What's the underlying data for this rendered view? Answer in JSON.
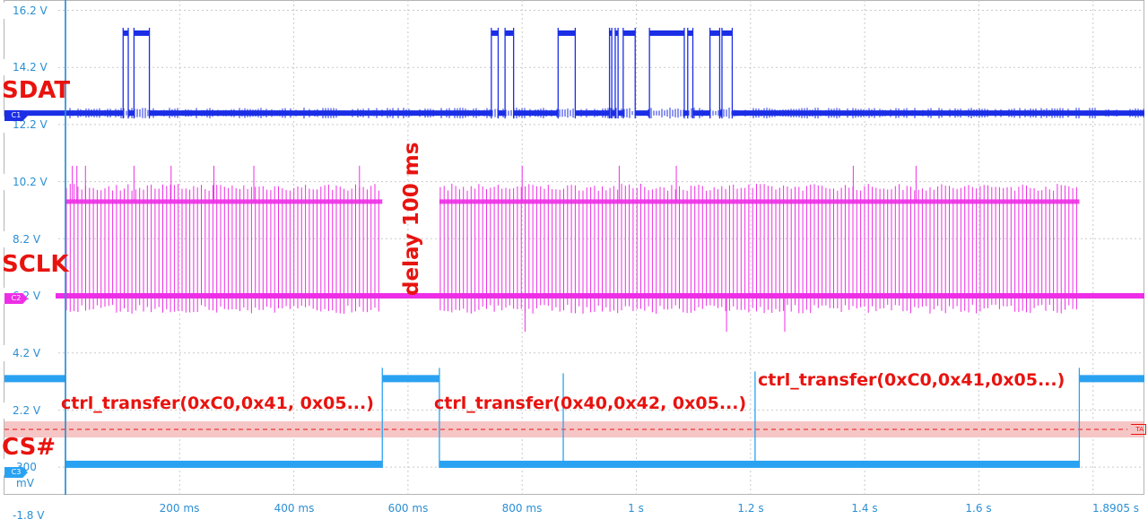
{
  "chart_data": {
    "type": "line",
    "title": "",
    "xlabel": "",
    "ylabel": "",
    "x_unit": "s",
    "xlim": [
      0,
      1.8905
    ],
    "ylim": [
      -1.8,
      16.2
    ],
    "y_ticks": [
      "16.2 V",
      "14.2 V",
      "12.2 V",
      "10.2 V",
      "8.2 V",
      "6.2 V",
      "4.2 V",
      "2.2 V",
      "300 mV",
      "-1.8 V"
    ],
    "x_ticks": [
      "200 ms",
      "400 ms",
      "600 ms",
      "800 ms",
      "1 s",
      "1.2 s",
      "1.4 s",
      "1.6 s",
      "1.8905 s"
    ],
    "x_tick_values": [
      0.2,
      0.4,
      0.6,
      0.8,
      1.0,
      1.2,
      1.4,
      1.6,
      1.8905
    ],
    "trigger_level_v": 1.0,
    "series": [
      {
        "name": "SDAT",
        "channel": "C1",
        "color": "#1b2ee6",
        "low_v": 12.6,
        "high_v": 15.4,
        "high_intervals": [
          [
            0.101,
            0.11
          ],
          [
            0.12,
            0.147
          ],
          [
            0.746,
            0.758
          ],
          [
            0.77,
            0.785
          ],
          [
            0.863,
            0.893
          ],
          [
            0.953,
            0.957
          ],
          [
            0.963,
            0.968
          ],
          [
            0.977,
            0.998
          ],
          [
            1.023,
            1.084
          ],
          [
            1.09,
            1.099
          ],
          [
            1.129,
            1.146
          ],
          [
            1.15,
            1.168
          ]
        ]
      },
      {
        "name": "SCLK",
        "channel": "C2",
        "color": "#ee2ee6",
        "low_v": 6.2,
        "high_v": 9.5,
        "bursts": [
          [
            0.0,
            0.555
          ],
          [
            0.655,
            1.776
          ]
        ]
      },
      {
        "name": "CS#",
        "channel": "C3",
        "color": "#2aa2f2",
        "low_v": 0.3,
        "high_v": 3.3,
        "high_intervals": [
          [
            -0.11,
            0.0
          ],
          [
            0.555,
            0.655
          ],
          [
            1.776,
            1.8905
          ]
        ],
        "glitches": [
          0.872
        ]
      }
    ],
    "annotations": {
      "delay": "delay 100 ms",
      "transfers": [
        "ctrl_transfer(0xC0,0x41, 0x05...)",
        "ctrl_transfer(0x40,0x42, 0x05...)",
        "ctrl_transfer(0xC0,0x41,0x05...)"
      ]
    },
    "markers": {
      "c1": "C1",
      "c2": "C2",
      "c3": "C3",
      "trigger": "TA"
    },
    "colors": {
      "grid": "#c9c9c9",
      "axis_label": "#2a8fd4",
      "annotation": "#e8130f",
      "trigger_band": "#f6c6c6"
    }
  }
}
